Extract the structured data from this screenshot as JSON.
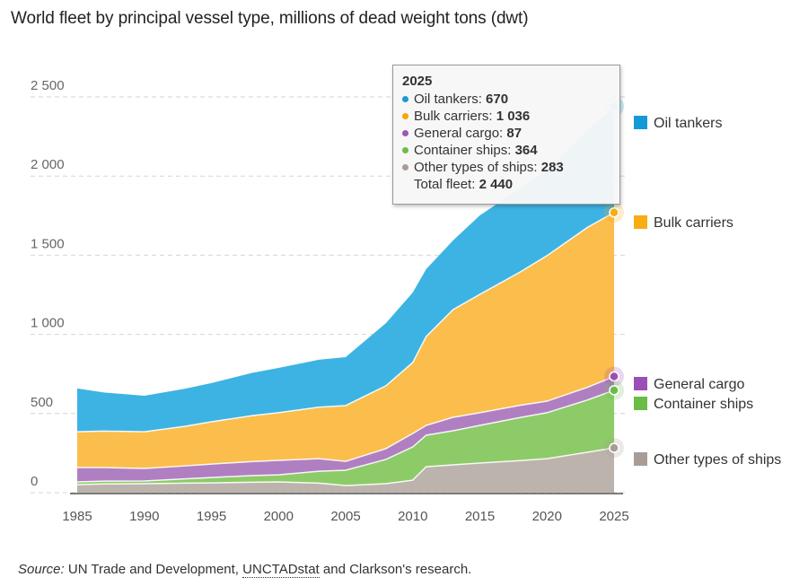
{
  "title": "World fleet by principal vessel type, millions of dead weight tons (dwt)",
  "chart_data": {
    "type": "area",
    "stacked": true,
    "title": "World fleet by principal vessel type, millions of dead weight tons (dwt)",
    "xlabel": "",
    "ylabel": "",
    "ylim": [
      0,
      2500
    ],
    "xlim": [
      1985,
      2025
    ],
    "grid": true,
    "legend_position": "right",
    "x": [
      1985,
      1987,
      1990,
      1993,
      1995,
      1998,
      2000,
      2003,
      2005,
      2008,
      2010,
      2011,
      2013,
      2015,
      2018,
      2020,
      2023,
      2025
    ],
    "yticks": [
      "0",
      "500",
      "1 000",
      "1 500",
      "2 000",
      "2 500"
    ],
    "ytick_values": [
      0,
      500,
      1000,
      1500,
      2000,
      2500
    ],
    "xticks": [
      "1985",
      "1990",
      "1995",
      "2000",
      "2005",
      "2010",
      "2015",
      "2020",
      "2025"
    ],
    "xtick_values": [
      1985,
      1990,
      1995,
      2000,
      2005,
      2010,
      2015,
      2020,
      2025
    ],
    "series": [
      {
        "name": "Other types of ships",
        "color": "#bdb3ad",
        "values": [
          51,
          55,
          57,
          60,
          62,
          66,
          68,
          60,
          45,
          57,
          79,
          164,
          176,
          187,
          203,
          215,
          255,
          283
        ]
      },
      {
        "name": "Container ships",
        "color": "#8dcb69",
        "values": [
          17,
          18,
          17,
          27,
          34,
          42,
          45,
          75,
          97,
          153,
          210,
          199,
          215,
          238,
          272,
          290,
          330,
          364
        ]
      },
      {
        "name": "General cargo",
        "color": "#b07fc2",
        "values": [
          91,
          86,
          79,
          82,
          85,
          88,
          91,
          80,
          56,
          68,
          85,
          62,
          85,
          80,
          77,
          73,
          80,
          87
        ]
      },
      {
        "name": "Bulk carriers",
        "color": "#fbbd4b",
        "values": [
          226,
          230,
          232,
          250,
          267,
          290,
          301,
          325,
          352,
          397,
          448,
          561,
          680,
          748,
          842,
          919,
          1010,
          1036
        ]
      },
      {
        "name": "Oil tankers",
        "color": "#3db3e3",
        "values": [
          273,
          244,
          227,
          237,
          244,
          270,
          283,
          300,
          306,
          396,
          442,
          426,
          437,
          499,
          528,
          538,
          610,
          670
        ]
      }
    ],
    "highlight": {
      "year": "2025",
      "items": [
        {
          "label": "Oil tankers",
          "value": "670",
          "color": "#1a9bd7"
        },
        {
          "label": "Bulk carriers",
          "value": "1 036",
          "color": "#f6a700"
        },
        {
          "label": "General cargo",
          "value": "87",
          "color": "#9b59b6"
        },
        {
          "label": "Container ships",
          "value": "364",
          "color": "#6abf45"
        },
        {
          "label": "Other types of ships",
          "value": "283",
          "color": "#a89d96"
        }
      ],
      "total_label": "Total fleet",
      "total_value": "2 440"
    },
    "legend": [
      {
        "label": "Oil tankers",
        "color": "#139ad6",
        "value_anchor": 2440
      },
      {
        "label": "Bulk carriers",
        "color": "#f8ad14",
        "value_anchor": 1770
      },
      {
        "label": "General cargo",
        "color": "#9b4fb6",
        "value_anchor": 734
      },
      {
        "label": "Container ships",
        "color": "#69bd45",
        "value_anchor": 647
      },
      {
        "label": "Other types of ships",
        "color": "#a89d96",
        "value_anchor": 283
      }
    ]
  },
  "source": {
    "label": "Source:",
    "text_before": "UN Trade and Development,",
    "link": "UNCTADstat",
    "text_after": "and Clarkson's research."
  }
}
